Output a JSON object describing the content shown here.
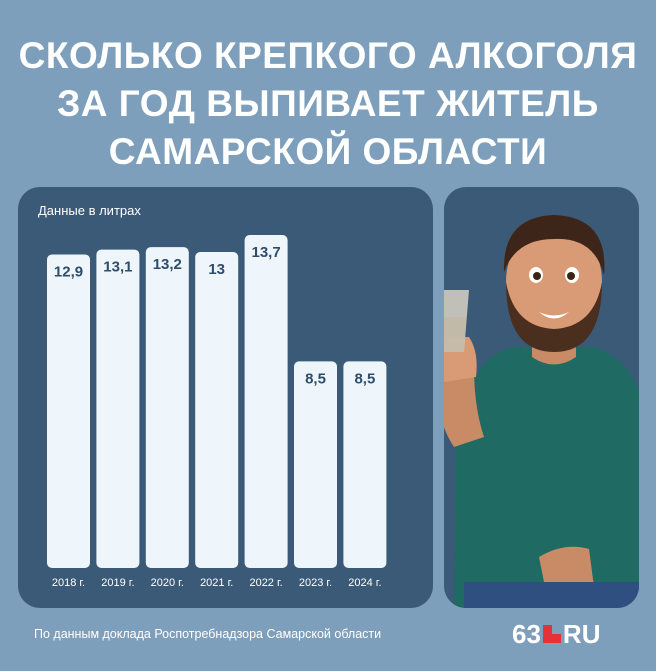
{
  "title_lines": [
    "СКОЛЬКО КРЕПКОГО АЛКОГОЛЯ",
    "ЗА ГОД ВЫПИВАЕТ ЖИТЕЛЬ",
    "САМАРСКОЙ ОБЛАСТИ"
  ],
  "source": "По данным доклада Роспотребнадзора Самарской области",
  "logo": {
    "number": "63",
    "suffix": "RU"
  },
  "colors": {
    "background": "#7e9fbb",
    "panel": "#3b5a77",
    "bar": "#eef6fc",
    "label": "#2f4d6a",
    "logo_accent": "#e5323a"
  },
  "chart_data": {
    "type": "bar",
    "unit_note": "Данные в литрах",
    "categories": [
      "2018 г.",
      "2019 г.",
      "2020 г.",
      "2021 г.",
      "2022 г.",
      "2023 г.",
      "2024 г."
    ],
    "values": [
      12.9,
      13.1,
      13.2,
      13,
      13.7,
      8.5,
      8.5
    ],
    "value_labels": [
      "12,9",
      "13,1",
      "13,2",
      "13",
      "13,7",
      "8,5",
      "8,5"
    ],
    "ylim": [
      0,
      13.7
    ]
  }
}
